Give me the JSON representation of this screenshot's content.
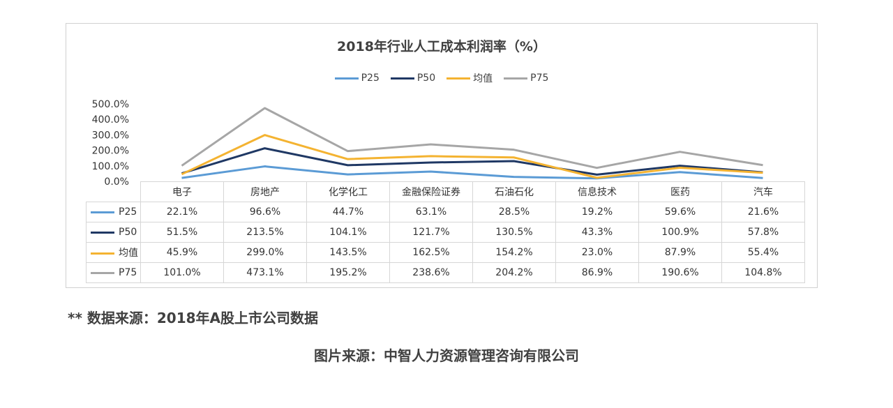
{
  "chart_data": {
    "type": "line",
    "title": "2018年行业人工成本利润率（%）",
    "categories": [
      "电子",
      "房地产",
      "化学化工",
      "金融保险证券",
      "石油石化",
      "信息技术",
      "医药",
      "汽车"
    ],
    "series": [
      {
        "name": "P25",
        "color": "#5b9bd5",
        "values": [
          22.1,
          96.6,
          44.7,
          63.1,
          28.5,
          19.2,
          59.6,
          21.6
        ],
        "labels": [
          "22.1%",
          "96.6%",
          "44.7%",
          "63.1%",
          "28.5%",
          "19.2%",
          "59.6%",
          "21.6%"
        ]
      },
      {
        "name": "P50",
        "color": "#1f3864",
        "values": [
          51.5,
          213.5,
          104.1,
          121.7,
          130.5,
          43.3,
          100.9,
          57.8
        ],
        "labels": [
          "51.5%",
          "213.5%",
          "104.1%",
          "121.7%",
          "130.5%",
          "43.3%",
          "100.9%",
          "57.8%"
        ]
      },
      {
        "name": "均值",
        "color": "#f4b331",
        "values": [
          45.9,
          299.0,
          143.5,
          162.5,
          154.2,
          23.0,
          87.9,
          55.4
        ],
        "labels": [
          "45.9%",
          "299.0%",
          "143.5%",
          "162.5%",
          "154.2%",
          "23.0%",
          "87.9%",
          "55.4%"
        ]
      },
      {
        "name": "P75",
        "color": "#a6a6a6",
        "values": [
          101.0,
          473.1,
          195.2,
          238.6,
          204.2,
          86.9,
          190.6,
          104.8
        ],
        "labels": [
          "101.0%",
          "473.1%",
          "195.2%",
          "238.6%",
          "204.2%",
          "86.9%",
          "190.6%",
          "104.8%"
        ]
      }
    ],
    "y_ticks": [
      "0.0%",
      "100.0%",
      "200.0%",
      "300.0%",
      "400.0%",
      "500.0%"
    ],
    "ylim": [
      0,
      500
    ],
    "legend_position": "top",
    "grid": false
  },
  "note": "** 数据来源：2018年A股上市公司数据",
  "source": "图片来源：中智人力资源管理咨询有限公司"
}
